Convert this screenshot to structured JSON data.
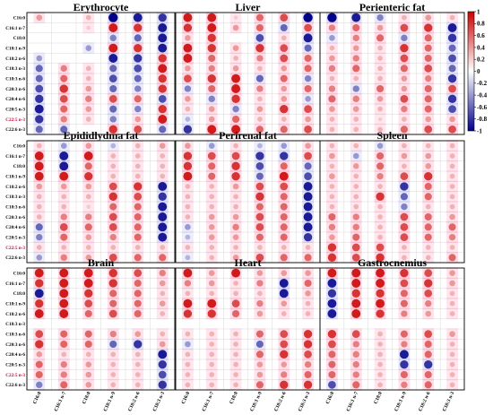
{
  "chart_data": {
    "type": "correlation_matrix_grid",
    "rows": [
      "C16:0",
      "C16:1 n-7",
      "C18:0",
      "C18:1 n-9",
      "C18:2 n-6",
      "C18:3 n-3",
      "C18:3 n-6",
      "C20:3 n-6",
      "C20:4 n-6",
      "C20:5 n-3",
      "C22:5 n-3",
      "C22:6 n-3"
    ],
    "columns": [
      "C16:0",
      "C16:1 n-7",
      "C18:0",
      "C18:1 n-9",
      "C18:2 n-6",
      "C18:3 n-3"
    ],
    "colorbar": {
      "min": -1,
      "max": 1,
      "ticks": [
        "1",
        "0.8",
        "0.6",
        "0.4",
        "0.2",
        "0",
        "-0.2",
        "-0.4",
        "-0.6",
        "-0.8",
        "-1"
      ],
      "high_color": "#cc0000",
      "mid_color": "#ffffff",
      "low_color": "#00008b"
    },
    "highlight_row": "C22:5 n-3",
    "highlight_color": "#cc0033",
    "panels": [
      {
        "title": "Erythrocyte",
        "values": [
          [
            0.4,
            0,
            0.3,
            -1,
            -0.9,
            -0.8
          ],
          [
            0,
            0,
            0.2,
            0.9,
            0.8,
            -0.9
          ],
          [
            0,
            0,
            0,
            -0.5,
            -0.6,
            -0.9
          ],
          [
            0,
            0,
            -0.4,
            0.9,
            0.8,
            -0.9
          ],
          [
            -0.4,
            0,
            0,
            -0.9,
            -0.8,
            0.8
          ],
          [
            -0.6,
            0.5,
            0.3,
            -0.6,
            -0.7,
            0.9
          ],
          [
            -0.6,
            0.6,
            0.3,
            -0.7,
            -0.6,
            0.8
          ],
          [
            -0.7,
            0.8,
            0.4,
            -0.6,
            -0.5,
            0.8
          ],
          [
            -0.8,
            0.7,
            0.5,
            0.7,
            0.6,
            -0.7
          ],
          [
            -0.9,
            0.6,
            0.4,
            -0.6,
            -0.5,
            0.8
          ],
          [
            -0.8,
            0.5,
            0.3,
            -0.5,
            0.4,
            0.9
          ],
          [
            -0.6,
            -0.6,
            0,
            0.8,
            0.7,
            -0.6
          ]
        ]
      },
      {
        "title": "Liver",
        "values": [
          [
            0.9,
            0.9,
            0.2,
            0.6,
            0.7,
            -1
          ],
          [
            0.8,
            0.9,
            0.4,
            0.6,
            -0.6,
            0.7
          ],
          [
            0.4,
            0.8,
            0,
            -0.7,
            0.3,
            -0.9
          ],
          [
            0.9,
            0.8,
            0.4,
            0.8,
            0.7,
            -0.6
          ],
          [
            0.9,
            0.6,
            0.3,
            0.5,
            0.7,
            0.6
          ],
          [
            0.4,
            0.5,
            0.4,
            0.3,
            0.4,
            0.6
          ],
          [
            0.7,
            0.8,
            0.9,
            -0.6,
            0.6,
            -0.5
          ],
          [
            -0.5,
            0.6,
            0.9,
            0.5,
            0.4,
            0.6
          ],
          [
            0.4,
            -0.5,
            0.8,
            0.3,
            0.4,
            -0.4
          ],
          [
            0.3,
            0.4,
            -0.5,
            0.4,
            0.8,
            0.7
          ],
          [
            -0.3,
            0.4,
            0.6,
            0.3,
            0.3,
            0.4
          ],
          [
            -0.8,
            0.9,
            0.9,
            0.6,
            0.6,
            0.7
          ]
        ]
      },
      {
        "title": "Perienteric fat",
        "values": [
          [
            -1,
            -0.9,
            -0.5,
            0.3,
            0.4,
            0.3
          ],
          [
            0.5,
            0.6,
            0.4,
            0.7,
            0.8,
            -0.9
          ],
          [
            -0.4,
            0.5,
            0.6,
            -0.5,
            0.6,
            -0.8
          ],
          [
            0.3,
            0.4,
            0.3,
            0.8,
            0.6,
            -0.6
          ],
          [
            0.4,
            0.5,
            0.3,
            0.7,
            0.6,
            -0.7
          ],
          [
            0.5,
            0.6,
            0.3,
            0.6,
            0.7,
            -0.6
          ],
          [
            0.3,
            0.3,
            0.3,
            0.4,
            0.5,
            -0.8
          ],
          [
            0.5,
            -0.5,
            0.6,
            0.4,
            0.6,
            0.7
          ],
          [
            0.6,
            0.5,
            0.4,
            0.7,
            0.6,
            -0.8
          ],
          [
            0.4,
            0.4,
            0.3,
            0.5,
            0.6,
            -0.7
          ],
          [
            0.3,
            0.3,
            0.2,
            0.3,
            0.4,
            0.4
          ],
          [
            0.3,
            0.3,
            0.3,
            0.6,
            0.7,
            0.7
          ]
        ]
      },
      {
        "title": "Epididlydma fat",
        "values": [
          [
            0.3,
            -0.4,
            0.4,
            -0.3,
            0.3,
            0.4
          ],
          [
            0.9,
            -0.9,
            0.9,
            0.3,
            0.3,
            0.3
          ],
          [
            0.9,
            -0.9,
            0.6,
            0.3,
            0.3,
            0.3
          ],
          [
            0.9,
            0.9,
            0.8,
            0.3,
            0.3,
            0.3
          ],
          [
            0.4,
            0.4,
            0.4,
            0.7,
            0.8,
            -0.9
          ],
          [
            0.3,
            0.3,
            0.3,
            0.8,
            0.7,
            -0.8
          ],
          [
            0.3,
            0.3,
            0.2,
            0.6,
            0.6,
            -0.9
          ],
          [
            0.3,
            0.5,
            0.5,
            0.7,
            0.6,
            -0.9
          ],
          [
            -0.6,
            0.7,
            0.6,
            0.7,
            0.6,
            -0.9
          ],
          [
            -0.5,
            0.6,
            0.4,
            0.5,
            0.6,
            -0.9
          ],
          [
            0.3,
            0.3,
            0.3,
            0.3,
            0.3,
            0.3
          ],
          [
            -0.4,
            0.5,
            0.4,
            0.7,
            0.6,
            0.6
          ]
        ]
      },
      {
        "title": "Perirenal fat",
        "values": [
          [
            0.4,
            -0.4,
            0.3,
            -0.3,
            -0.4,
            0.4
          ],
          [
            0.8,
            0.7,
            0.7,
            -0.8,
            -0.8,
            0.7
          ],
          [
            0.8,
            0.6,
            0.8,
            -0.7,
            0.6,
            -0.6
          ],
          [
            0.9,
            0.6,
            0.8,
            -0.6,
            0.9,
            -0.7
          ],
          [
            0.3,
            0.3,
            0.4,
            0.7,
            0.7,
            -0.9
          ],
          [
            0.3,
            0.3,
            0.3,
            0.8,
            0.6,
            -0.9
          ],
          [
            0.3,
            0.3,
            0.3,
            0.6,
            0.6,
            -0.9
          ],
          [
            0.3,
            0.4,
            0.4,
            0.7,
            0.6,
            -0.9
          ],
          [
            -0.4,
            0.4,
            0.5,
            0.7,
            0.6,
            -0.9
          ],
          [
            -0.3,
            0.4,
            0.4,
            0.6,
            0.6,
            -0.8
          ],
          [
            0.3,
            0.3,
            0.3,
            0.3,
            0.3,
            0.3
          ],
          [
            -0.3,
            0.3,
            0.4,
            0.7,
            0.6,
            0.6
          ]
        ]
      },
      {
        "title": "Spleen",
        "values": [
          [
            0.3,
            0.3,
            -0.4,
            0.3,
            0.3,
            0.3
          ],
          [
            0.4,
            -0.4,
            0.6,
            0.4,
            0.4,
            0.3
          ],
          [
            0.3,
            0.4,
            0.6,
            0.3,
            0.4,
            0.3
          ],
          [
            0.4,
            0.3,
            0.5,
            0.7,
            0.8,
            0.3
          ],
          [
            0.3,
            0.3,
            0.3,
            -0.8,
            0.6,
            0.3
          ],
          [
            0.3,
            0.3,
            0.8,
            -0.6,
            0.6,
            0.3
          ],
          [
            0.3,
            0.3,
            0.3,
            -0.5,
            0.3,
            0.3
          ],
          [
            0.6,
            0.5,
            0.3,
            0.7,
            0.6,
            0.4
          ],
          [
            0.5,
            0.5,
            0.3,
            0.7,
            0.6,
            0.6
          ],
          [
            0.4,
            0.6,
            0.3,
            0.7,
            0.6,
            0.5
          ],
          [
            0.8,
            0.7,
            0.7,
            0.3,
            0.3,
            0.3
          ],
          [
            0.8,
            0.7,
            0.8,
            0.3,
            0.3,
            0.6
          ]
        ]
      },
      {
        "title": "Brain",
        "values": [
          [
            0.9,
            0.9,
            0.9,
            0.8,
            0.7,
            0.5
          ],
          [
            0.8,
            0.9,
            0.9,
            0.8,
            0.6,
            0.4
          ],
          [
            -0.9,
            0.9,
            0.8,
            0.6,
            0.6,
            0.3
          ],
          [
            0.8,
            0.9,
            0.7,
            0.6,
            0.6,
            0.4
          ],
          [
            0.9,
            0.9,
            0.6,
            0.7,
            0.6,
            0.3
          ],
          [
            0,
            0,
            0,
            0,
            0,
            0
          ],
          [
            0.7,
            0.6,
            0.6,
            0.5,
            0.4,
            0.3
          ],
          [
            0.8,
            0.6,
            0.6,
            -0.6,
            -0.8,
            0.4
          ],
          [
            0.4,
            0.3,
            0.3,
            0.3,
            0.3,
            -0.9
          ],
          [
            0.6,
            0.5,
            0.4,
            0.3,
            0.3,
            -0.8
          ],
          [
            0.6,
            0.5,
            0.4,
            0.3,
            0.3,
            -0.7
          ],
          [
            -0.5,
            0.6,
            0.4,
            0.3,
            0.3,
            -0.8
          ]
        ]
      },
      {
        "title": "Heart",
        "values": [
          [
            0.9,
            0.4,
            0.9,
            0.4,
            0.4,
            0.4
          ],
          [
            0.5,
            0.4,
            0.3,
            0.5,
            -0.9,
            0.6
          ],
          [
            0.3,
            0.3,
            0.3,
            0.3,
            -0.9,
            0.4
          ],
          [
            0.9,
            0.9,
            0.7,
            0.5,
            0.4,
            0.3
          ],
          [
            0.8,
            0.8,
            0.6,
            0.4,
            0.3,
            0.3
          ],
          [
            0,
            0,
            0,
            0,
            0,
            0
          ],
          [
            0.3,
            0.3,
            0.3,
            0.6,
            0.7,
            0.8
          ],
          [
            -0.4,
            0.3,
            0.3,
            -0.6,
            0.7,
            0.8
          ],
          [
            0.3,
            0.3,
            0.3,
            0.6,
            0.8,
            0.7
          ],
          [
            0.3,
            0.3,
            0.3,
            0.4,
            0.4,
            0.5
          ],
          [
            0.3,
            0.3,
            0.3,
            0.4,
            0.5,
            0.6
          ],
          [
            0.3,
            0.3,
            0.3,
            0.6,
            0.8,
            0.8
          ]
        ]
      },
      {
        "title": "Gastrocnemius",
        "values": [
          [
            0.9,
            0.9,
            0.9,
            0.8,
            0.7,
            0.4
          ],
          [
            -0.9,
            0.9,
            0.9,
            0.7,
            0.8,
            0.4
          ],
          [
            -0.8,
            0.8,
            0.8,
            0.6,
            0.7,
            0.3
          ],
          [
            -0.9,
            0.9,
            0.9,
            0.6,
            0.5,
            0.3
          ],
          [
            -0.9,
            0.9,
            0.8,
            0.5,
            0.4,
            0.3
          ],
          [
            0,
            0,
            0,
            0,
            0,
            0
          ],
          [
            0.8,
            0.7,
            0.3,
            0.6,
            0.7,
            0.4
          ],
          [
            0.7,
            0.5,
            0.3,
            0.5,
            0.6,
            0.3
          ],
          [
            0.6,
            0.5,
            0.3,
            -0.9,
            0.6,
            0.3
          ],
          [
            0.6,
            0.5,
            0.3,
            -0.8,
            -0.8,
            0.3
          ],
          [
            0.6,
            0.5,
            0.3,
            0.6,
            0.6,
            0.3
          ],
          [
            -0.7,
            0.6,
            0.3,
            0.5,
            0.6,
            0.3
          ]
        ]
      }
    ]
  }
}
